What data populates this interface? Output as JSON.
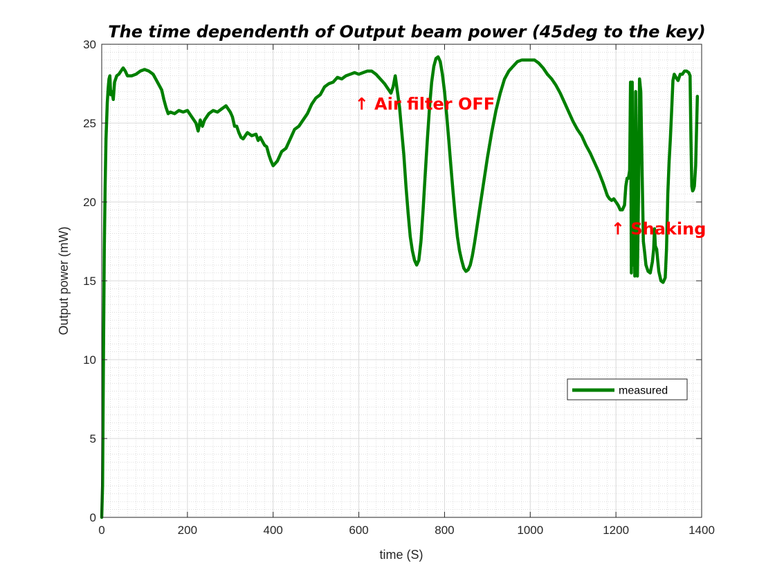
{
  "chart_data": {
    "type": "line",
    "title": "The time dependenth of Output beam power (45deg to the key)",
    "xlabel": "time (S)",
    "ylabel": "Output power (mW)",
    "xlim": [
      0,
      1400
    ],
    "ylim": [
      0,
      30
    ],
    "xticks": [
      0,
      200,
      400,
      600,
      800,
      1000,
      1200,
      1400
    ],
    "yticks": [
      0,
      5,
      10,
      15,
      20,
      25,
      30
    ],
    "grid": true,
    "minor_grid": true,
    "legend_position": "lower-right",
    "series": [
      {
        "name": "measured",
        "color": "#007f00",
        "points": [
          [
            0,
            0
          ],
          [
            2,
            2
          ],
          [
            4,
            10
          ],
          [
            6,
            17
          ],
          [
            8,
            21
          ],
          [
            10,
            24
          ],
          [
            13,
            26.3
          ],
          [
            15,
            27.2
          ],
          [
            17,
            27.8
          ],
          [
            19,
            28.0
          ],
          [
            21,
            26.8
          ],
          [
            24,
            27.0
          ],
          [
            27,
            26.5
          ],
          [
            30,
            27.6
          ],
          [
            35,
            28.0
          ],
          [
            40,
            28.1
          ],
          [
            45,
            28.3
          ],
          [
            50,
            28.5
          ],
          [
            55,
            28.3
          ],
          [
            60,
            28.0
          ],
          [
            70,
            28.0
          ],
          [
            80,
            28.1
          ],
          [
            90,
            28.3
          ],
          [
            100,
            28.4
          ],
          [
            110,
            28.3
          ],
          [
            120,
            28.1
          ],
          [
            130,
            27.6
          ],
          [
            140,
            27.1
          ],
          [
            145,
            26.5
          ],
          [
            150,
            26.0
          ],
          [
            155,
            25.6
          ],
          [
            160,
            25.7
          ],
          [
            170,
            25.6
          ],
          [
            180,
            25.8
          ],
          [
            190,
            25.7
          ],
          [
            200,
            25.8
          ],
          [
            210,
            25.4
          ],
          [
            220,
            25.0
          ],
          [
            225,
            24.5
          ],
          [
            230,
            25.2
          ],
          [
            235,
            24.8
          ],
          [
            240,
            25.2
          ],
          [
            250,
            25.6
          ],
          [
            260,
            25.8
          ],
          [
            270,
            25.7
          ],
          [
            280,
            25.9
          ],
          [
            290,
            26.1
          ],
          [
            300,
            25.7
          ],
          [
            305,
            25.4
          ],
          [
            310,
            24.8
          ],
          [
            315,
            24.8
          ],
          [
            320,
            24.4
          ],
          [
            325,
            24.1
          ],
          [
            330,
            24.0
          ],
          [
            340,
            24.4
          ],
          [
            350,
            24.2
          ],
          [
            360,
            24.3
          ],
          [
            365,
            23.9
          ],
          [
            370,
            24.1
          ],
          [
            380,
            23.6
          ],
          [
            385,
            23.5
          ],
          [
            390,
            23.0
          ],
          [
            395,
            22.6
          ],
          [
            400,
            22.3
          ],
          [
            410,
            22.6
          ],
          [
            420,
            23.2
          ],
          [
            430,
            23.4
          ],
          [
            440,
            24.0
          ],
          [
            450,
            24.6
          ],
          [
            460,
            24.8
          ],
          [
            470,
            25.2
          ],
          [
            480,
            25.6
          ],
          [
            490,
            26.2
          ],
          [
            500,
            26.6
          ],
          [
            510,
            26.8
          ],
          [
            520,
            27.3
          ],
          [
            530,
            27.5
          ],
          [
            540,
            27.6
          ],
          [
            550,
            27.9
          ],
          [
            560,
            27.8
          ],
          [
            570,
            28.0
          ],
          [
            580,
            28.1
          ],
          [
            590,
            28.2
          ],
          [
            600,
            28.1
          ],
          [
            610,
            28.2
          ],
          [
            620,
            28.3
          ],
          [
            630,
            28.3
          ],
          [
            640,
            28.1
          ],
          [
            650,
            27.8
          ],
          [
            660,
            27.5
          ],
          [
            670,
            27.1
          ],
          [
            675,
            26.9
          ],
          [
            680,
            27.3
          ],
          [
            685,
            28.0
          ],
          [
            690,
            27.0
          ],
          [
            695,
            26.0
          ],
          [
            700,
            24.5
          ],
          [
            705,
            23.0
          ],
          [
            710,
            21.0
          ],
          [
            715,
            19.3
          ],
          [
            720,
            17.8
          ],
          [
            725,
            16.9
          ],
          [
            730,
            16.3
          ],
          [
            735,
            16.0
          ],
          [
            740,
            16.3
          ],
          [
            745,
            17.5
          ],
          [
            750,
            19.5
          ],
          [
            755,
            21.8
          ],
          [
            760,
            24.0
          ],
          [
            765,
            26.0
          ],
          [
            770,
            27.6
          ],
          [
            775,
            28.6
          ],
          [
            780,
            29.1
          ],
          [
            785,
            29.2
          ],
          [
            790,
            28.9
          ],
          [
            795,
            28.1
          ],
          [
            800,
            27.0
          ],
          [
            805,
            25.5
          ],
          [
            810,
            23.9
          ],
          [
            815,
            22.2
          ],
          [
            820,
            20.6
          ],
          [
            825,
            19.1
          ],
          [
            830,
            17.8
          ],
          [
            835,
            16.9
          ],
          [
            840,
            16.3
          ],
          [
            845,
            15.8
          ],
          [
            850,
            15.6
          ],
          [
            855,
            15.7
          ],
          [
            860,
            16.0
          ],
          [
            865,
            16.6
          ],
          [
            870,
            17.4
          ],
          [
            875,
            18.3
          ],
          [
            880,
            19.2
          ],
          [
            890,
            21.0
          ],
          [
            900,
            22.8
          ],
          [
            910,
            24.4
          ],
          [
            920,
            25.8
          ],
          [
            930,
            26.9
          ],
          [
            940,
            27.8
          ],
          [
            950,
            28.3
          ],
          [
            960,
            28.6
          ],
          [
            970,
            28.9
          ],
          [
            980,
            29.0
          ],
          [
            990,
            29.0
          ],
          [
            1000,
            29.0
          ],
          [
            1010,
            29.0
          ],
          [
            1020,
            28.8
          ],
          [
            1030,
            28.5
          ],
          [
            1040,
            28.1
          ],
          [
            1050,
            27.8
          ],
          [
            1060,
            27.4
          ],
          [
            1070,
            26.9
          ],
          [
            1080,
            26.3
          ],
          [
            1090,
            25.7
          ],
          [
            1100,
            25.1
          ],
          [
            1110,
            24.6
          ],
          [
            1120,
            24.2
          ],
          [
            1130,
            23.6
          ],
          [
            1140,
            23.1
          ],
          [
            1150,
            22.5
          ],
          [
            1160,
            21.9
          ],
          [
            1170,
            21.2
          ],
          [
            1175,
            20.8
          ],
          [
            1180,
            20.4
          ],
          [
            1185,
            20.2
          ],
          [
            1190,
            20.1
          ],
          [
            1195,
            20.2
          ],
          [
            1200,
            20.0
          ],
          [
            1205,
            19.8
          ],
          [
            1210,
            19.5
          ],
          [
            1215,
            19.5
          ],
          [
            1220,
            19.8
          ],
          [
            1223,
            21.0
          ],
          [
            1226,
            21.5
          ],
          [
            1229,
            21.5
          ],
          [
            1232,
            22.0
          ],
          [
            1234,
            27.6
          ],
          [
            1236,
            15.5
          ],
          [
            1238,
            27.6
          ],
          [
            1240,
            16.0
          ],
          [
            1242,
            24.0
          ],
          [
            1244,
            15.3
          ],
          [
            1246,
            27.0
          ],
          [
            1248,
            20.0
          ],
          [
            1250,
            15.3
          ],
          [
            1253,
            21.0
          ],
          [
            1255,
            27.8
          ],
          [
            1258,
            27.0
          ],
          [
            1261,
            22.0
          ],
          [
            1264,
            17.5
          ],
          [
            1267,
            16.8
          ],
          [
            1270,
            16.0
          ],
          [
            1275,
            15.6
          ],
          [
            1280,
            15.5
          ],
          [
            1285,
            16.2
          ],
          [
            1288,
            17.0
          ],
          [
            1290,
            18.3
          ],
          [
            1292,
            17.2
          ],
          [
            1295,
            17.0
          ],
          [
            1300,
            15.6
          ],
          [
            1305,
            15.0
          ],
          [
            1310,
            14.9
          ],
          [
            1315,
            15.2
          ],
          [
            1318,
            17.0
          ],
          [
            1321,
            20.5
          ],
          [
            1324,
            22.5
          ],
          [
            1327,
            24.0
          ],
          [
            1330,
            25.8
          ],
          [
            1333,
            27.7
          ],
          [
            1336,
            28.1
          ],
          [
            1340,
            27.9
          ],
          [
            1345,
            27.7
          ],
          [
            1350,
            28.1
          ],
          [
            1355,
            28.1
          ],
          [
            1360,
            28.3
          ],
          [
            1365,
            28.3
          ],
          [
            1370,
            28.2
          ],
          [
            1373,
            28.0
          ],
          [
            1375,
            24.0
          ],
          [
            1377,
            21.0
          ],
          [
            1379,
            20.7
          ],
          [
            1381,
            20.8
          ],
          [
            1383,
            21.0
          ],
          [
            1386,
            22.3
          ],
          [
            1388,
            24.5
          ],
          [
            1390,
            26.7
          ]
        ]
      }
    ],
    "annotations": [
      {
        "text": "↑ Air filter OFF",
        "x": 600,
        "y": 26.2,
        "color": "#ff0000"
      },
      {
        "text": "↑ Shaking",
        "x": 1198,
        "y": 18.3,
        "color": "#ff0000"
      }
    ]
  }
}
